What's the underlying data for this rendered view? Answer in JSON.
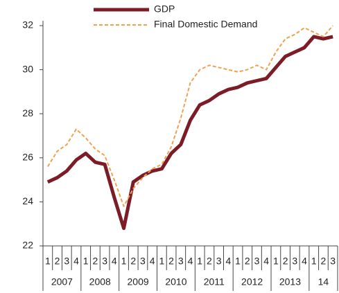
{
  "chart_data": {
    "type": "line",
    "categories": [
      "1",
      "2",
      "3",
      "4",
      "1",
      "2",
      "3",
      "4",
      "1",
      "2",
      "3",
      "4",
      "1",
      "2",
      "3",
      "4",
      "1",
      "2",
      "3",
      "4",
      "1",
      "2",
      "3",
      "4",
      "1",
      "2",
      "3",
      "4",
      "1",
      "2",
      "3"
    ],
    "year_groups": [
      "2007",
      "2008",
      "2009",
      "2010",
      "2011",
      "2012",
      "2013",
      "14"
    ],
    "series": [
      {
        "name": "GDP",
        "color": "#7b1c26",
        "values": [
          24.9,
          25.1,
          25.4,
          25.9,
          26.2,
          25.8,
          25.7,
          24.2,
          22.8,
          24.9,
          25.2,
          25.4,
          25.5,
          26.2,
          26.6,
          27.7,
          28.4,
          28.6,
          28.9,
          29.1,
          29.2,
          29.4,
          29.5,
          29.6,
          30.1,
          30.6,
          30.8,
          31.0,
          31.5,
          31.4,
          31.5
        ]
      },
      {
        "name": "Final Domestic Demand",
        "color": "#f0a050",
        "values": [
          25.6,
          26.3,
          26.6,
          27.3,
          26.9,
          26.4,
          26.1,
          25.0,
          23.8,
          24.6,
          25.1,
          25.5,
          25.7,
          26.5,
          27.8,
          29.4,
          30.0,
          30.2,
          30.1,
          30.0,
          29.9,
          30.0,
          30.2,
          30.0,
          30.8,
          31.4,
          31.6,
          31.9,
          31.7,
          31.5,
          32.0
        ]
      }
    ],
    "ylim": [
      22,
      32
    ],
    "yticks": [
      22,
      24,
      26,
      28,
      30,
      32
    ],
    "legend": "top"
  }
}
